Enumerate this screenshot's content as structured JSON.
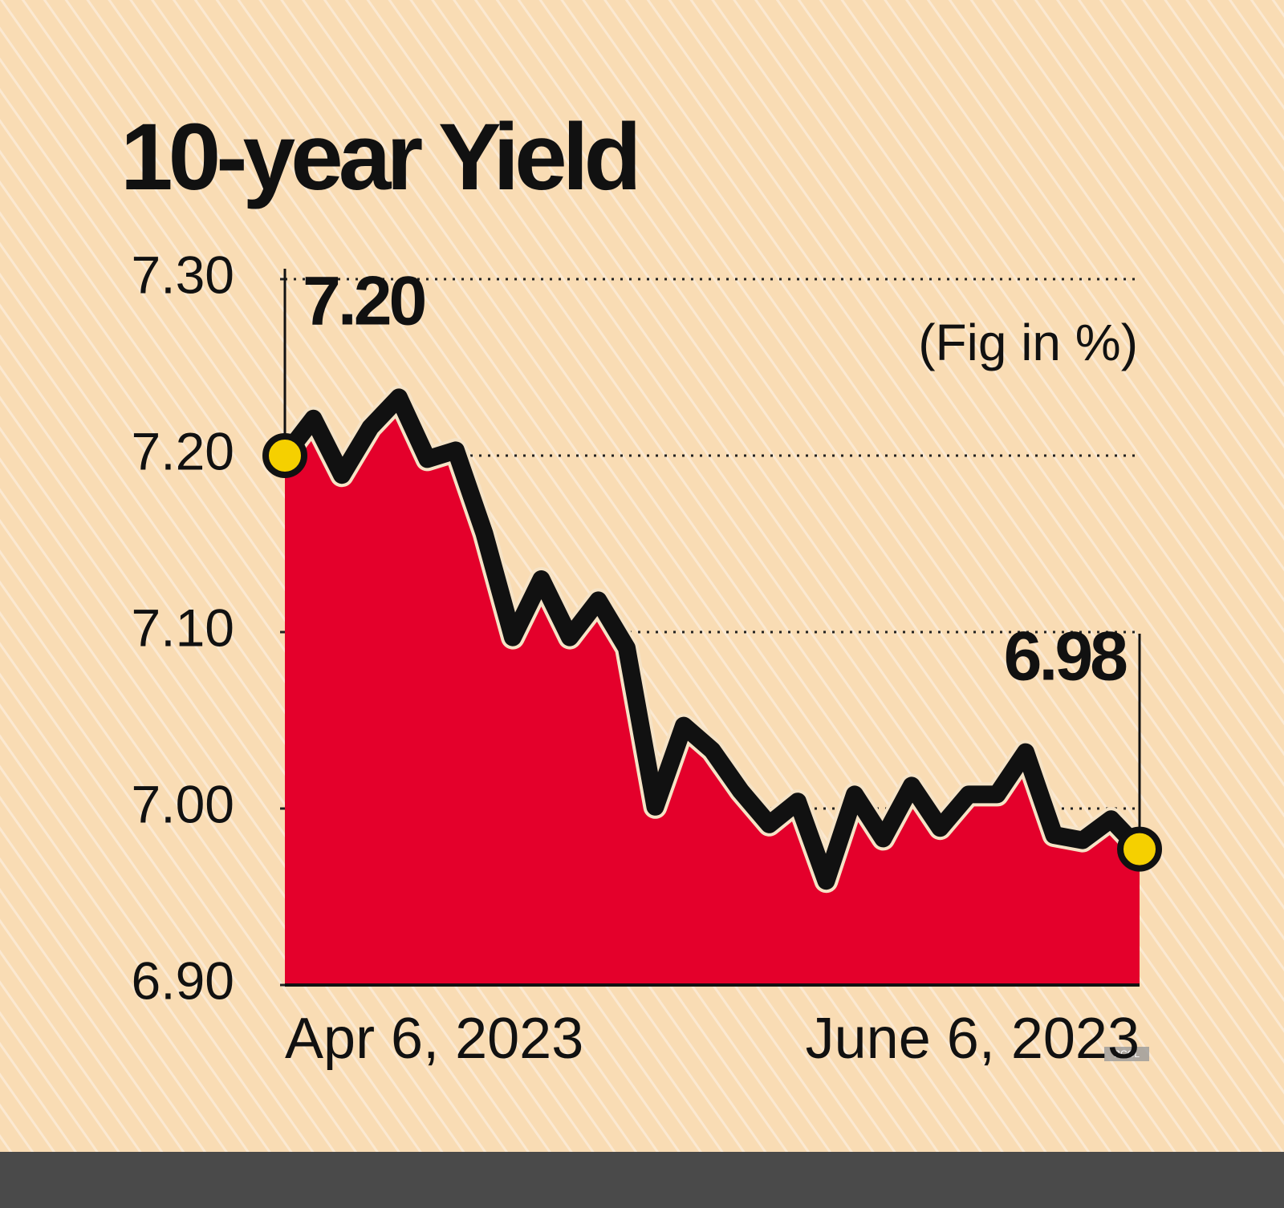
{
  "chart_data": {
    "type": "area",
    "title": "10-year Yield",
    "note": "(Fig in %)",
    "watermark": "BCCL",
    "categories": [
      "Apr 6, 2023",
      null,
      null,
      null,
      null,
      null,
      null,
      null,
      null,
      null,
      null,
      null,
      null,
      null,
      null,
      null,
      null,
      null,
      null,
      null,
      null,
      null,
      null,
      null,
      null,
      null,
      null,
      null,
      null,
      null,
      "June 6, 2023"
    ],
    "values": [
      7.2,
      7.221,
      7.189,
      7.216,
      7.233,
      7.198,
      7.203,
      7.156,
      7.097,
      7.13,
      7.097,
      7.118,
      7.091,
      7.001,
      7.047,
      7.033,
      7.01,
      6.991,
      7.004,
      6.959,
      7.008,
      6.983,
      7.013,
      6.989,
      7.008,
      7.008,
      7.032,
      6.985,
      6.982,
      6.994,
      6.977
    ],
    "value_labels": [
      "7.20",
      null,
      null,
      null,
      null,
      null,
      null,
      null,
      null,
      null,
      null,
      null,
      null,
      null,
      null,
      null,
      null,
      null,
      null,
      null,
      null,
      null,
      null,
      null,
      null,
      null,
      null,
      null,
      null,
      null,
      "6.98"
    ],
    "color": "#e4002b",
    "line_color": "#111111",
    "marker_color": "#f5d000",
    "ylim": [
      6.9,
      7.3
    ],
    "yticks": [
      {
        "value": 6.9,
        "label": "6.90"
      },
      {
        "value": 7.0,
        "label": "7.00"
      },
      {
        "value": 7.1,
        "label": "7.10"
      },
      {
        "value": 7.2,
        "label": "7.20"
      },
      {
        "value": 7.3,
        "label": "7.30"
      }
    ],
    "grid": true
  }
}
